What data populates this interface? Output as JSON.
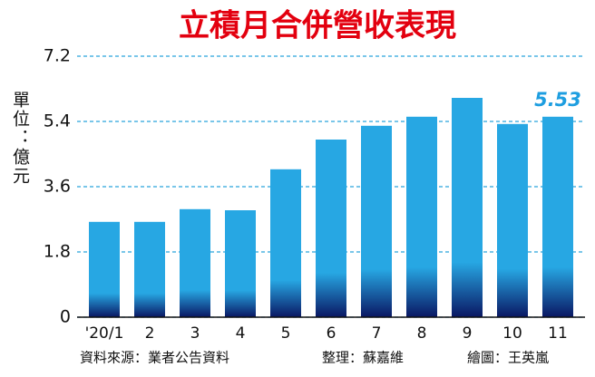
{
  "chart_data": {
    "type": "bar",
    "title": "立積月合併營收表現",
    "y_label": "單位：億元",
    "categories": [
      "'20/1",
      "2",
      "3",
      "4",
      "5",
      "6",
      "7",
      "8",
      "9",
      "10",
      "11"
    ],
    "values": [
      2.63,
      2.63,
      2.98,
      2.95,
      4.08,
      4.9,
      5.28,
      5.53,
      6.05,
      5.33,
      5.53
    ],
    "value_labels": [
      null,
      null,
      null,
      null,
      null,
      null,
      null,
      null,
      null,
      null,
      "5.53"
    ],
    "color": "#27a7e3",
    "color_bottom": "#0a1763",
    "ylim": [
      0,
      7.2
    ],
    "yticks": [
      0,
      1.8,
      3.6,
      5.4,
      7.2
    ],
    "grid": true,
    "source": "資料來源：業者公告資料",
    "editor": "整理：蘇嘉維",
    "illustrator": "繪圖：王英嵐"
  }
}
